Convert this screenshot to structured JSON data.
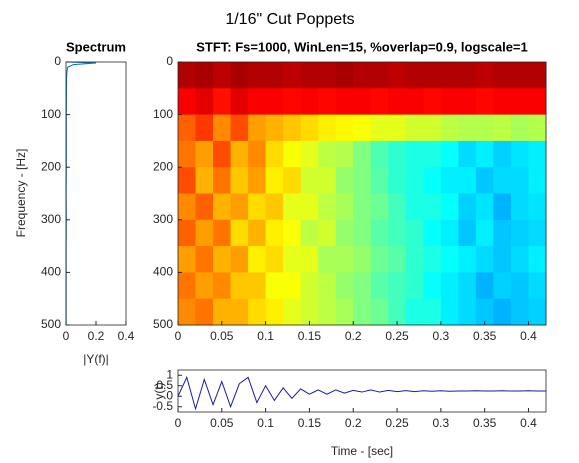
{
  "title": "1/16\" Cut Poppets",
  "chart_data": [
    {
      "type": "line",
      "title": "Spectrum",
      "xlabel": "|Y(f)|",
      "ylabel": "Frequency - [Hz]",
      "frequency": [
        0,
        2,
        5,
        10,
        20,
        30,
        50,
        100,
        150,
        200,
        250,
        300,
        350,
        400,
        450,
        500
      ],
      "values": [
        0.02,
        0.2,
        0.05,
        0.01,
        0.006,
        0.004,
        0.003,
        0.002,
        0.002,
        0.002,
        0.001,
        0.002,
        0.001,
        0.001,
        0.001,
        0.001
      ],
      "color": "#0072bd",
      "xlim": [
        0,
        0.4
      ],
      "xticks": [
        0,
        0.2,
        0.4
      ],
      "ylim": [
        0,
        500
      ],
      "yticks": [
        0,
        100,
        200,
        300,
        400,
        500
      ],
      "y_reversed": true
    },
    {
      "type": "heatmap",
      "title": "STFT: Fs=1000, WinLen=15, %overlap=0.9, logscale=1",
      "x": [
        0.01,
        0.03,
        0.05,
        0.07,
        0.09,
        0.11,
        0.13,
        0.15,
        0.17,
        0.19,
        0.21,
        0.23,
        0.25,
        0.27,
        0.29,
        0.31,
        0.33,
        0.35,
        0.37,
        0.39,
        0.41
      ],
      "y": [
        25,
        75,
        125,
        175,
        225,
        275,
        325,
        375,
        425,
        475
      ],
      "z": [
        [
          0.95,
          0.96,
          0.94,
          0.96,
          0.95,
          0.95,
          0.94,
          0.95,
          0.95,
          0.96,
          0.95,
          0.95,
          0.94,
          0.95,
          0.95,
          0.95,
          0.95,
          0.94,
          0.95,
          0.95,
          0.95
        ],
        [
          0.88,
          0.9,
          0.86,
          0.9,
          0.88,
          0.88,
          0.87,
          0.88,
          0.87,
          0.88,
          0.88,
          0.87,
          0.88,
          0.88,
          0.87,
          0.88,
          0.88,
          0.87,
          0.88,
          0.88,
          0.88
        ],
        [
          0.78,
          0.82,
          0.74,
          0.8,
          0.72,
          0.7,
          0.68,
          0.66,
          0.64,
          0.63,
          0.62,
          0.6,
          0.6,
          0.58,
          0.58,
          0.56,
          0.55,
          0.55,
          0.56,
          0.54,
          0.55
        ],
        [
          0.76,
          0.72,
          0.8,
          0.7,
          0.74,
          0.66,
          0.62,
          0.6,
          0.56,
          0.55,
          0.5,
          0.45,
          0.42,
          0.4,
          0.4,
          0.38,
          0.34,
          0.36,
          0.33,
          0.35,
          0.36
        ],
        [
          0.8,
          0.7,
          0.76,
          0.68,
          0.72,
          0.64,
          0.66,
          0.58,
          0.58,
          0.52,
          0.5,
          0.46,
          0.42,
          0.4,
          0.38,
          0.36,
          0.36,
          0.32,
          0.34,
          0.34,
          0.36
        ],
        [
          0.74,
          0.78,
          0.7,
          0.72,
          0.66,
          0.68,
          0.6,
          0.6,
          0.56,
          0.54,
          0.5,
          0.48,
          0.44,
          0.4,
          0.4,
          0.38,
          0.33,
          0.35,
          0.3,
          0.34,
          0.35
        ],
        [
          0.78,
          0.72,
          0.76,
          0.66,
          0.7,
          0.64,
          0.62,
          0.56,
          0.58,
          0.52,
          0.5,
          0.46,
          0.44,
          0.42,
          0.38,
          0.36,
          0.32,
          0.36,
          0.32,
          0.33,
          0.34
        ],
        [
          0.72,
          0.76,
          0.7,
          0.72,
          0.64,
          0.66,
          0.6,
          0.6,
          0.54,
          0.54,
          0.52,
          0.48,
          0.46,
          0.42,
          0.4,
          0.38,
          0.36,
          0.34,
          0.32,
          0.34,
          0.36
        ],
        [
          0.76,
          0.72,
          0.74,
          0.68,
          0.68,
          0.62,
          0.62,
          0.58,
          0.56,
          0.52,
          0.5,
          0.46,
          0.44,
          0.42,
          0.38,
          0.36,
          0.34,
          0.3,
          0.33,
          0.32,
          0.34
        ],
        [
          0.74,
          0.76,
          0.7,
          0.7,
          0.66,
          0.64,
          0.6,
          0.58,
          0.56,
          0.54,
          0.5,
          0.48,
          0.44,
          0.4,
          0.4,
          0.36,
          0.34,
          0.32,
          0.3,
          0.32,
          0.33
        ]
      ],
      "colormap": "jet",
      "zlim": [
        0,
        1
      ],
      "xlim": [
        0,
        0.42
      ],
      "xticks": [
        0,
        0.05,
        0.1,
        0.15,
        0.2,
        0.25,
        0.3,
        0.35,
        0.4
      ],
      "ylim": [
        0,
        500
      ],
      "yticks": [
        0,
        100,
        200,
        300,
        400,
        500
      ],
      "y_reversed": true
    },
    {
      "type": "line",
      "xlabel": "Time - [sec]",
      "ylabel": "y(t)",
      "x": [
        0,
        0.01,
        0.02,
        0.03,
        0.04,
        0.05,
        0.06,
        0.07,
        0.08,
        0.09,
        0.1,
        0.11,
        0.12,
        0.13,
        0.14,
        0.15,
        0.16,
        0.17,
        0.18,
        0.19,
        0.2,
        0.21,
        0.22,
        0.23,
        0.24,
        0.25,
        0.26,
        0.27,
        0.28,
        0.29,
        0.3,
        0.31,
        0.32,
        0.33,
        0.34,
        0.35,
        0.36,
        0.37,
        0.38,
        0.39,
        0.4,
        0.41,
        0.42
      ],
      "values": [
        0,
        0.9,
        -0.6,
        0.8,
        -0.4,
        0.7,
        -0.5,
        0.6,
        0.9,
        -0.3,
        0.5,
        -0.2,
        0.4,
        -0.1,
        0.35,
        0.1,
        0.3,
        0.1,
        0.3,
        0.15,
        0.28,
        0.2,
        0.3,
        0.2,
        0.28,
        0.22,
        0.27,
        0.22,
        0.26,
        0.24,
        0.26,
        0.24,
        0.25,
        0.25,
        0.26,
        0.25,
        0.25,
        0.26,
        0.25,
        0.25,
        0.26,
        0.25,
        0.25
      ],
      "color": "#1a1aa6",
      "xlim": [
        0,
        0.42
      ],
      "xticks": [
        0,
        0.05,
        0.1,
        0.15,
        0.2,
        0.25,
        0.3,
        0.35,
        0.4
      ],
      "ylim": [
        -0.75,
        1.25
      ],
      "yticks": [
        1,
        0.5,
        0,
        -0.5
      ]
    }
  ]
}
